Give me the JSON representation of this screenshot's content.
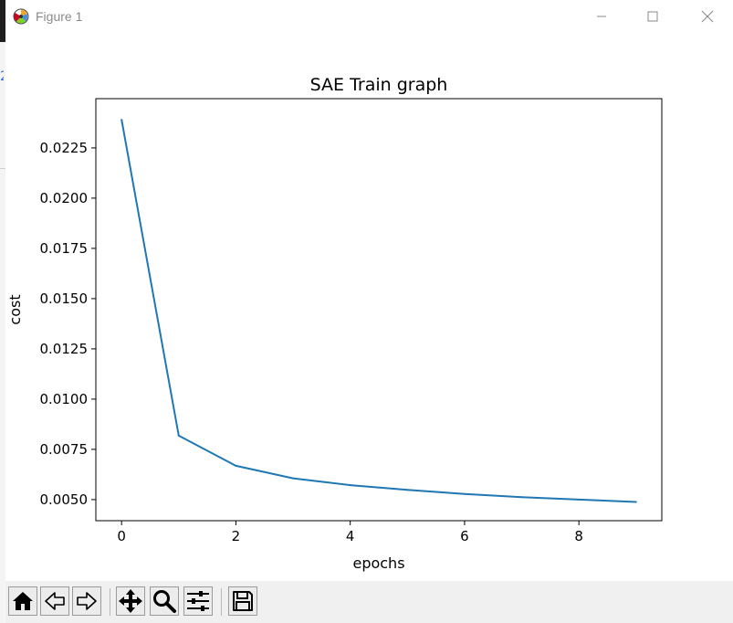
{
  "window": {
    "title": "Figure 1"
  },
  "chart_data": {
    "type": "line",
    "title": "SAE Train graph",
    "xlabel": "epochs",
    "ylabel": "cost",
    "x": [
      0,
      1,
      2,
      3,
      4,
      5,
      6,
      7,
      8,
      9
    ],
    "series": [
      {
        "color": "#1f77b4",
        "values": [
          0.0239,
          0.00818,
          0.00668,
          0.00606,
          0.00572,
          0.00548,
          0.00528,
          0.00512,
          0.005,
          0.00488
        ]
      }
    ],
    "xlim": [
      -0.45,
      9.45
    ],
    "ylim": [
      0.00395,
      0.02495
    ],
    "xticks": [
      0,
      2,
      4,
      6,
      8
    ],
    "xtick_labels": [
      "0",
      "2",
      "4",
      "6",
      "8"
    ],
    "yticks": [
      0.005,
      0.0075,
      0.01,
      0.0125,
      0.015,
      0.0175,
      0.02,
      0.0225
    ],
    "ytick_labels": [
      "0.0050",
      "0.0075",
      "0.0100",
      "0.0125",
      "0.0150",
      "0.0175",
      "0.0200",
      "0.0225"
    ],
    "grid": false,
    "legend": "none"
  },
  "toolbar": {
    "icons": [
      "home-icon",
      "back-icon",
      "forward-icon",
      "pan-icon",
      "zoom-icon",
      "configure-subplots-icon",
      "save-icon"
    ]
  },
  "colors": {
    "line": "#1f77b4",
    "toolbar_bg": "#f0f0f0"
  }
}
